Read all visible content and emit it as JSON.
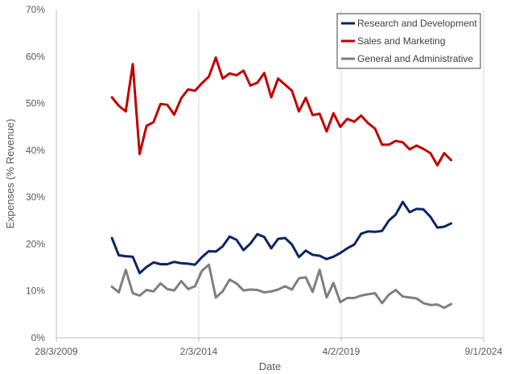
{
  "chart_data": {
    "type": "line",
    "xlabel": "Date",
    "ylabel": "Expenses (% Revenue)",
    "xlim": [
      "2009-03-28",
      "2024-09-01"
    ],
    "xticks": [
      "28/3/2009",
      "2/3/2014",
      "4/2/2019",
      "9/1/2024"
    ],
    "ylim": [
      0,
      70
    ],
    "yticks": [
      "0%",
      "10%",
      "20%",
      "30%",
      "40%",
      "50%",
      "60%",
      "70%"
    ],
    "grid": "vertical",
    "legend_position": "top-right",
    "x": [
      "2011-03-31",
      "2011-06-30",
      "2011-09-30",
      "2011-12-31",
      "2012-03-31",
      "2012-06-30",
      "2012-09-30",
      "2012-12-31",
      "2013-03-31",
      "2013-06-30",
      "2013-09-30",
      "2013-12-31",
      "2014-03-31",
      "2014-06-30",
      "2014-09-30",
      "2014-12-31",
      "2015-03-31",
      "2015-06-30",
      "2015-09-30",
      "2015-12-31",
      "2016-03-31",
      "2016-06-30",
      "2016-09-30",
      "2016-12-31",
      "2017-03-31",
      "2017-06-30",
      "2017-09-30",
      "2017-12-31",
      "2018-03-31",
      "2018-06-30",
      "2018-09-30",
      "2018-12-31",
      "2019-03-31",
      "2019-06-30",
      "2019-09-30",
      "2019-12-31",
      "2020-03-31",
      "2020-06-30",
      "2020-09-30",
      "2020-12-31",
      "2021-03-31",
      "2021-06-30",
      "2021-09-30",
      "2021-12-31",
      "2022-03-31",
      "2022-06-30",
      "2022-09-30",
      "2022-12-31",
      "2023-03-31",
      "2023-06-30",
      "2023-09-30",
      "2023-12-31"
    ],
    "series": [
      {
        "name": "Research and Development",
        "color": "#0b2466",
        "values": [
          21.3,
          17.6,
          17.4,
          17.3,
          13.8,
          15.1,
          16.1,
          15.7,
          15.7,
          16.2,
          15.9,
          15.8,
          15.6,
          17.2,
          18.5,
          18.4,
          19.5,
          21.6,
          20.9,
          18.7,
          20.1,
          22.1,
          21.5,
          19.1,
          21.1,
          21.3,
          19.9,
          17.2,
          18.6,
          17.7,
          17.5,
          16.8,
          17.3,
          18.1,
          19.1,
          19.9,
          22.2,
          22.7,
          22.6,
          22.8,
          25.0,
          26.3,
          29.0,
          26.8,
          27.5,
          27.4,
          25.8,
          23.5,
          23.7,
          24.4,
          null,
          null
        ]
      },
      {
        "name": "Sales and Marketing",
        "color": "#c00000",
        "values": [
          51.3,
          49.5,
          48.3,
          58.4,
          39.2,
          45.2,
          46.0,
          49.9,
          49.7,
          47.6,
          51.1,
          53.0,
          52.7,
          54.3,
          55.7,
          59.8,
          55.3,
          56.4,
          56.0,
          57.0,
          53.8,
          54.4,
          56.5,
          51.3,
          55.3,
          54.0,
          52.7,
          48.3,
          51.2,
          47.5,
          47.8,
          44.0,
          47.9,
          45.0,
          46.7,
          46.1,
          47.4,
          45.8,
          44.6,
          41.2,
          41.2,
          42.0,
          41.7,
          40.2,
          41.0,
          40.3,
          39.4,
          36.8,
          39.4,
          37.9,
          null,
          null
        ]
      },
      {
        "name": "General and Administrative",
        "color": "#7f7f7f",
        "values": [
          10.9,
          9.7,
          14.5,
          9.5,
          9.0,
          10.2,
          9.9,
          11.6,
          10.4,
          10.1,
          12.1,
          10.4,
          11.0,
          14.3,
          15.6,
          8.6,
          9.9,
          12.4,
          11.6,
          10.1,
          10.3,
          10.2,
          9.7,
          9.9,
          10.3,
          11.0,
          10.3,
          12.7,
          12.9,
          9.8,
          14.5,
          8.6,
          11.7,
          7.6,
          8.5,
          8.5,
          9.0,
          9.3,
          9.5,
          7.4,
          9.2,
          10.2,
          8.8,
          8.6,
          8.4,
          7.4,
          7.0,
          7.1,
          6.4,
          7.2,
          null,
          null
        ]
      }
    ]
  }
}
